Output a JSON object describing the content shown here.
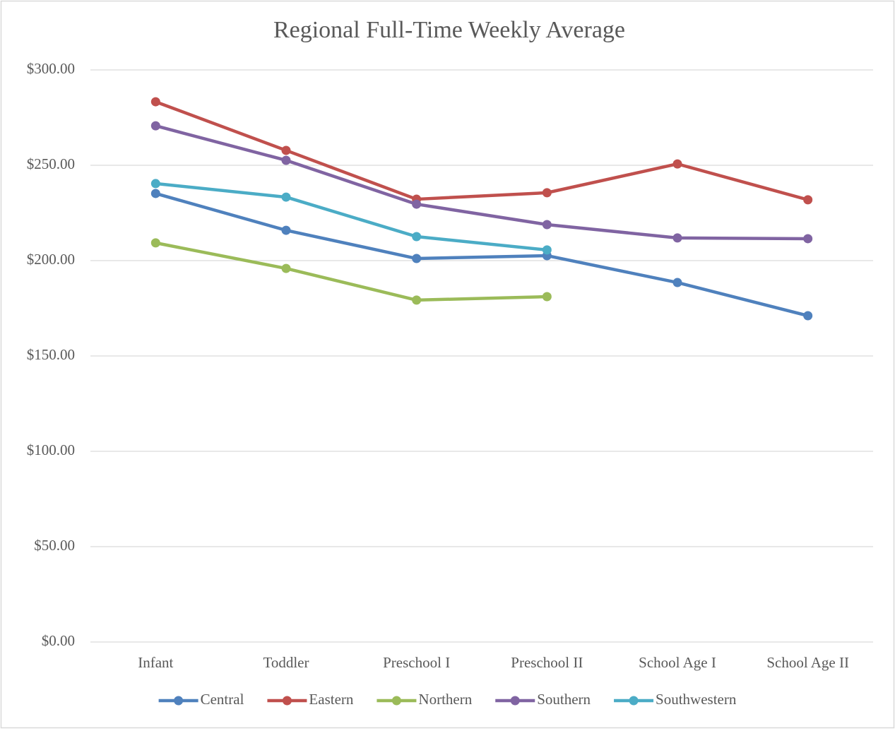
{
  "chart_data": {
    "type": "line",
    "title": "Regional Full-Time Weekly Average",
    "categories": [
      "Infant",
      "Toddler",
      "Preschool I",
      "Preschool II",
      "School Age I",
      "School Age II"
    ],
    "series": [
      {
        "name": "Central",
        "color": "#4f81bd",
        "values": [
          235.2,
          215.9,
          201.1,
          202.6,
          188.5,
          171.1
        ]
      },
      {
        "name": "Eastern",
        "color": "#c0504d",
        "values": [
          283.3,
          257.8,
          232.2,
          235.6,
          250.7,
          231.9
        ]
      },
      {
        "name": "Northern",
        "color": "#9bbb59",
        "values": [
          209.3,
          195.9,
          179.3,
          181.1,
          null,
          null
        ]
      },
      {
        "name": "Southern",
        "color": "#8064a2",
        "values": [
          270.7,
          252.6,
          229.6,
          218.9,
          211.9,
          211.5
        ]
      },
      {
        "name": "Southwestern",
        "color": "#4bacc6",
        "values": [
          240.4,
          233.3,
          212.6,
          205.6,
          null,
          null
        ]
      }
    ],
    "ylim": [
      0,
      300
    ],
    "yticks": [
      {
        "value": 0,
        "label": "$0.00"
      },
      {
        "value": 50,
        "label": "$50.00"
      },
      {
        "value": 100,
        "label": "$100.00"
      },
      {
        "value": 150,
        "label": "$150.00"
      },
      {
        "value": 200,
        "label": "$200.00"
      },
      {
        "value": 250,
        "label": "$250.00"
      },
      {
        "value": 300,
        "label": "$300.00"
      }
    ],
    "grid": true,
    "legend": "bottom"
  }
}
